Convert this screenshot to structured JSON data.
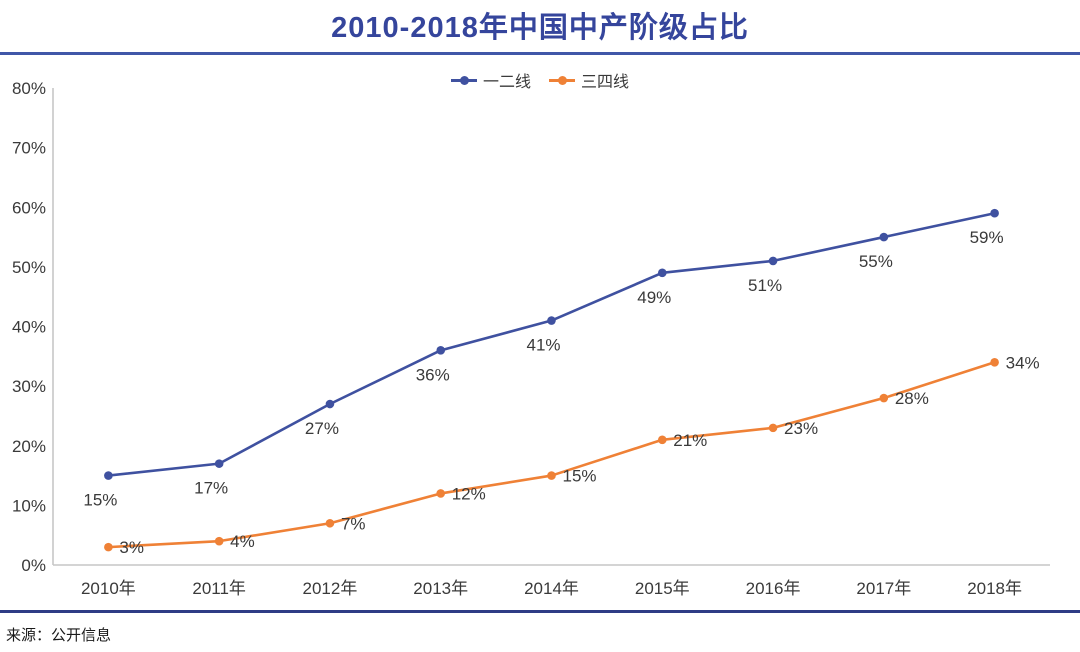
{
  "title": "2010-2018年中国中产阶级占比",
  "source_note": "来源：公开信息",
  "colors": {
    "title_blue": "#35459c",
    "divider_top": "#4057a8",
    "divider_bottom": "#2f3c85",
    "series1": "#3f51a0",
    "series2": "#ef8136",
    "axis_gray": "#c6c6c6",
    "label_text": "#3a3a3a"
  },
  "chart_data": {
    "type": "line",
    "title": "2010-2018年中国中产阶级占比",
    "categories": [
      "2010年",
      "2011年",
      "2012年",
      "2013年",
      "2014年",
      "2015年",
      "2016年",
      "2017年",
      "2018年"
    ],
    "series": [
      {
        "name": "一二线",
        "color_key": "series1",
        "values": [
          15,
          17,
          27,
          36,
          41,
          49,
          51,
          55,
          59
        ]
      },
      {
        "name": "三四线",
        "color_key": "series2",
        "values": [
          3,
          4,
          7,
          12,
          15,
          21,
          23,
          28,
          34
        ]
      }
    ],
    "unit": "%",
    "ylim": [
      0,
      80
    ],
    "y_tick_step": 10,
    "y_tick_labels": [
      "0%",
      "10%",
      "20%",
      "30%",
      "40%",
      "50%",
      "60%",
      "70%",
      "80%"
    ],
    "xlabel": "",
    "ylabel": "",
    "grid": false,
    "legend_position": "top-center",
    "markers": true
  }
}
